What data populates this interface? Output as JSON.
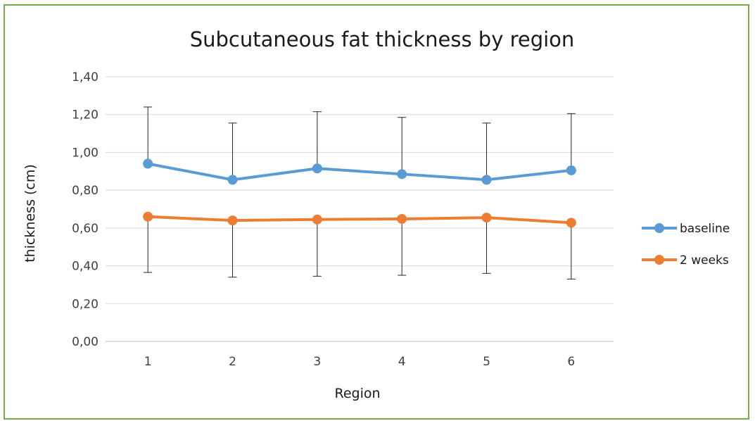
{
  "chart_data": {
    "type": "line",
    "title": "Subcutaneous fat thickness by region",
    "xlabel": "Region",
    "ylabel": "thickness (cm)",
    "categories": [
      "1",
      "2",
      "3",
      "4",
      "5",
      "6"
    ],
    "ylim": [
      0,
      1.4
    ],
    "yticks": [
      "0,00",
      "0,20",
      "0,40",
      "0,60",
      "0,80",
      "1,00",
      "1,20",
      "1,40"
    ],
    "grid": true,
    "legend_position": "right",
    "series": [
      {
        "name": "baseline",
        "color": "#5b9bd5",
        "values": [
          0.94,
          0.855,
          0.915,
          0.885,
          0.855,
          0.905
        ],
        "error_upper": [
          1.24,
          1.155,
          1.215,
          1.185,
          1.155,
          1.205
        ]
      },
      {
        "name": "2 weeks",
        "color": "#ed7d31",
        "values": [
          0.66,
          0.64,
          0.645,
          0.648,
          0.655,
          0.628
        ],
        "error_lower": [
          0.365,
          0.34,
          0.345,
          0.35,
          0.36,
          0.33
        ]
      }
    ]
  }
}
